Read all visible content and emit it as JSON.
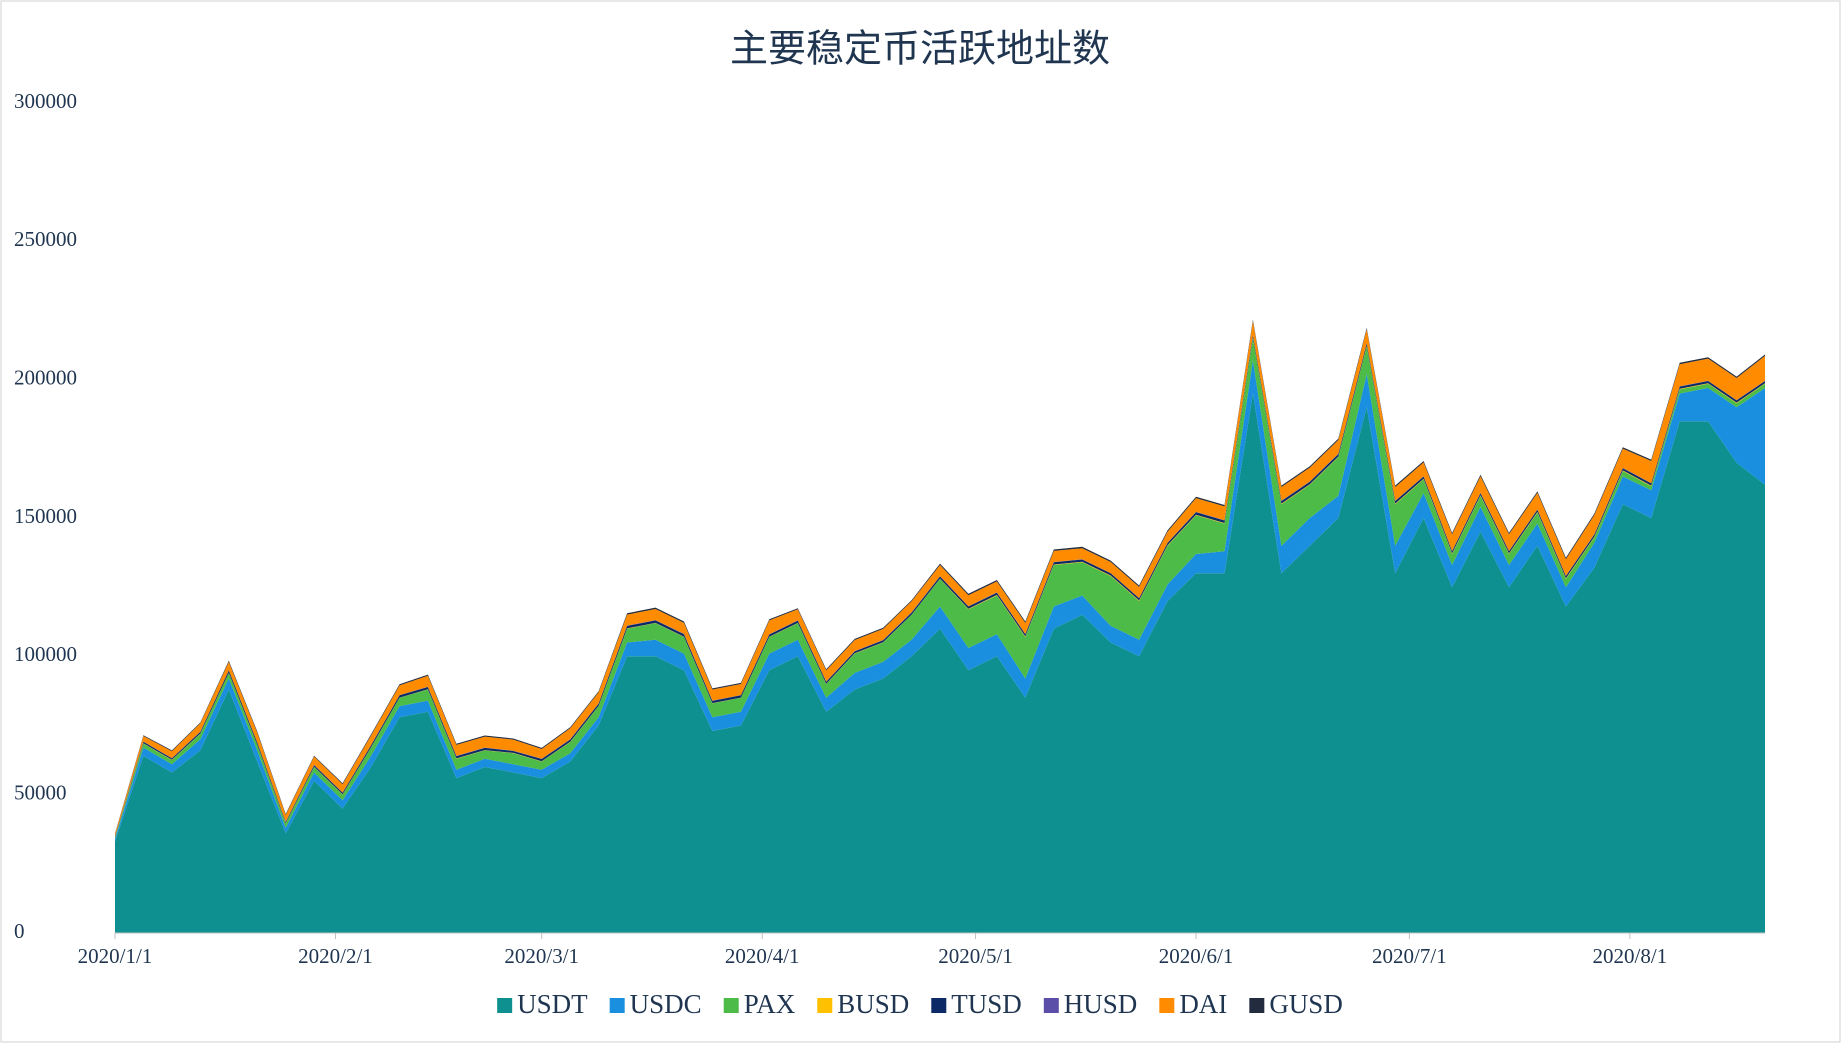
{
  "chart_data": {
    "type": "stacked-area",
    "title": "主要稳定币活跃地址数",
    "x": [
      "2020/1/1",
      "2020/1/5",
      "2020/1/9",
      "2020/1/13",
      "2020/1/17",
      "2020/1/21",
      "2020/1/25",
      "2020/1/29",
      "2020/2/2",
      "2020/2/6",
      "2020/2/10",
      "2020/2/14",
      "2020/2/18",
      "2020/2/22",
      "2020/2/26",
      "2020/3/1",
      "2020/3/5",
      "2020/3/9",
      "2020/3/13",
      "2020/3/17",
      "2020/3/21",
      "2020/3/25",
      "2020/3/29",
      "2020/4/2",
      "2020/4/6",
      "2020/4/10",
      "2020/4/14",
      "2020/4/18",
      "2020/4/22",
      "2020/4/26",
      "2020/4/30",
      "2020/5/4",
      "2020/5/8",
      "2020/5/12",
      "2020/5/16",
      "2020/5/20",
      "2020/5/24",
      "2020/5/28",
      "2020/6/1",
      "2020/6/5",
      "2020/6/9",
      "2020/6/13",
      "2020/6/17",
      "2020/6/21",
      "2020/6/25",
      "2020/6/29",
      "2020/7/3",
      "2020/7/7",
      "2020/7/11",
      "2020/7/15",
      "2020/7/19",
      "2020/7/23",
      "2020/7/27",
      "2020/7/31",
      "2020/8/4",
      "2020/8/8",
      "2020/8/12",
      "2020/8/16",
      "2020/8/20"
    ],
    "xlim": [
      "2020/1/1",
      "2020/8/20"
    ],
    "xticks": [
      "2020/1/1",
      "2020/2/1",
      "2020/3/1",
      "2020/4/1",
      "2020/5/1",
      "2020/6/1",
      "2020/7/1",
      "2020/8/1"
    ],
    "ylim": [
      0,
      300000
    ],
    "yticks": [
      0,
      50000,
      100000,
      150000,
      200000,
      250000,
      300000
    ],
    "series": [
      {
        "name": "USDT",
        "color": "#0e9090",
        "values": [
          33000,
          64000,
          58000,
          66000,
          88000,
          62000,
          36000,
          55000,
          45000,
          60000,
          78000,
          80000,
          56000,
          60000,
          58000,
          56000,
          62000,
          75000,
          100000,
          100000,
          95000,
          73000,
          75000,
          95000,
          100000,
          80000,
          88000,
          92000,
          100000,
          110000,
          95000,
          100000,
          85000,
          110000,
          115000,
          105000,
          100000,
          120000,
          130000,
          130000,
          195000,
          130000,
          140000,
          150000,
          190000,
          130000,
          150000,
          125000,
          145000,
          125000,
          140000,
          118000,
          132000,
          155000,
          150000,
          185000,
          185000,
          170000,
          162000
        ]
      },
      {
        "name": "USDC",
        "color": "#1a8fe0",
        "values": [
          1000,
          3000,
          3000,
          4000,
          4000,
          4000,
          2000,
          3000,
          3000,
          4000,
          4000,
          4000,
          3000,
          3000,
          3000,
          3000,
          3000,
          3000,
          5000,
          6000,
          6000,
          5000,
          5000,
          6000,
          6000,
          5000,
          6000,
          6000,
          6000,
          8000,
          8000,
          8000,
          7000,
          8000,
          7000,
          6000,
          6000,
          6000,
          7000,
          8000,
          12000,
          10000,
          10000,
          8000,
          12000,
          10000,
          9000,
          8000,
          9000,
          8000,
          8000,
          7000,
          9000,
          10000,
          10000,
          10000,
          12000,
          20000,
          35000
        ]
      },
      {
        "name": "PAX",
        "color": "#4cbb47",
        "values": [
          500,
          1500,
          1500,
          2000,
          2000,
          2000,
          1500,
          2000,
          2000,
          3000,
          3000,
          4000,
          4000,
          3000,
          4000,
          3000,
          4000,
          4000,
          5000,
          6000,
          6000,
          5000,
          5000,
          6000,
          6000,
          5000,
          7000,
          7000,
          9000,
          10000,
          14000,
          14000,
          15000,
          15000,
          12000,
          18000,
          14000,
          14000,
          14000,
          10000,
          8000,
          15000,
          12000,
          14000,
          10000,
          15000,
          5000,
          4000,
          4000,
          4000,
          4000,
          3000,
          2000,
          2000,
          1500,
          1500,
          1500,
          1500,
          1500
        ]
      },
      {
        "name": "BUSD",
        "color": "#ffc000",
        "values": [
          100,
          100,
          100,
          100,
          100,
          100,
          100,
          100,
          100,
          100,
          100,
          100,
          100,
          100,
          100,
          100,
          100,
          100,
          100,
          100,
          100,
          100,
          100,
          100,
          100,
          100,
          100,
          100,
          100,
          100,
          200,
          200,
          200,
          200,
          200,
          200,
          200,
          200,
          200,
          200,
          200,
          200,
          200,
          200,
          200,
          200,
          200,
          200,
          200,
          200,
          200,
          200,
          200,
          200,
          200,
          200,
          200,
          200,
          200
        ]
      },
      {
        "name": "TUSD",
        "color": "#0b2a66",
        "values": [
          300,
          500,
          500,
          600,
          800,
          800,
          500,
          600,
          600,
          700,
          800,
          800,
          800,
          800,
          700,
          800,
          800,
          800,
          900,
          900,
          900,
          800,
          800,
          800,
          800,
          700,
          700,
          700,
          700,
          800,
          800,
          800,
          800,
          800,
          800,
          800,
          800,
          800,
          900,
          900,
          900,
          900,
          900,
          900,
          900,
          900,
          800,
          800,
          800,
          800,
          800,
          800,
          800,
          800,
          800,
          800,
          800,
          800,
          800
        ]
      },
      {
        "name": "HUSD",
        "color": "#5b4ea8",
        "values": [
          100,
          100,
          100,
          100,
          100,
          100,
          100,
          100,
          100,
          100,
          100,
          100,
          100,
          100,
          100,
          100,
          100,
          100,
          100,
          100,
          100,
          100,
          100,
          100,
          100,
          100,
          100,
          100,
          100,
          100,
          100,
          100,
          100,
          100,
          100,
          100,
          100,
          100,
          100,
          100,
          100,
          100,
          100,
          100,
          100,
          100,
          100,
          100,
          100,
          100,
          100,
          100,
          100,
          100,
          100,
          100,
          100,
          100,
          100
        ]
      },
      {
        "name": "DAI",
        "color": "#ff8c00",
        "values": [
          800,
          2000,
          2500,
          3000,
          3000,
          3500,
          2500,
          3000,
          3000,
          3500,
          3500,
          4000,
          4000,
          4000,
          4000,
          3500,
          4000,
          4000,
          4000,
          4000,
          4000,
          4000,
          4000,
          5000,
          4000,
          4000,
          4000,
          4000,
          4000,
          4000,
          4000,
          4000,
          4000,
          4000,
          4000,
          4000,
          4000,
          4000,
          5000,
          5000,
          5000,
          5000,
          5000,
          5000,
          5000,
          5000,
          5000,
          6000,
          6000,
          6000,
          6000,
          6000,
          7000,
          7000,
          8000,
          8000,
          8000,
          8000,
          9000
        ]
      },
      {
        "name": "GUSD",
        "color": "#232b3e",
        "values": [
          200,
          300,
          300,
          300,
          400,
          400,
          300,
          300,
          300,
          400,
          400,
          400,
          400,
          400,
          400,
          400,
          400,
          400,
          500,
          500,
          500,
          400,
          400,
          400,
          400,
          400,
          400,
          400,
          400,
          500,
          500,
          500,
          500,
          500,
          500,
          500,
          500,
          500,
          500,
          500,
          500,
          500,
          500,
          500,
          500,
          500,
          500,
          500,
          500,
          500,
          500,
          500,
          500,
          500,
          500,
          500,
          500,
          500,
          500
        ]
      }
    ],
    "legend": "bottom"
  }
}
